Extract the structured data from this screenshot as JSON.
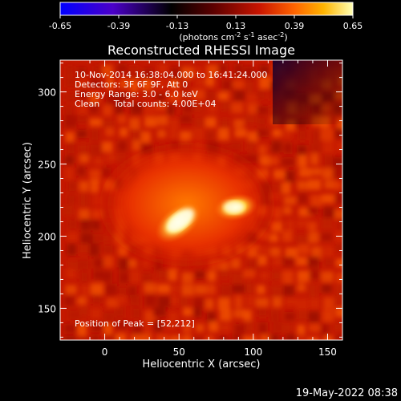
{
  "colorbar": {
    "ticks": [
      "-0.65",
      "-0.39",
      "-0.13",
      "0.13",
      "0.39",
      "0.65"
    ],
    "min": -0.65,
    "max": 0.65,
    "colors": [
      "#0000ff",
      "#4b00c8",
      "#000000",
      "#5a0000",
      "#c81400",
      "#ff6400",
      "#ffb400",
      "#ffffb4"
    ],
    "units_main": "(photons cm",
    "units_exp1": "-2",
    "units_mid": " s",
    "units_exp2": "-1",
    "units_end": " asec",
    "units_exp3": "-2",
    "units_close": ")"
  },
  "chart_data": {
    "type": "heatmap",
    "title": "Reconstructed RHESSI Image",
    "xlabel": "Heliocentric X (arcsec)",
    "ylabel": "Heliocentric Y (arcsec)",
    "xlim": [
      -30,
      160
    ],
    "ylim": [
      128,
      322
    ],
    "xticks": [
      0,
      50,
      100,
      150
    ],
    "yticks": [
      150,
      200,
      250,
      300
    ],
    "xtick_labels": [
      "0",
      "50",
      "100",
      "150"
    ],
    "ytick_labels": [
      "150",
      "200",
      "250",
      "300"
    ],
    "annotations": [
      "10-Nov-2014 16:38:04.000 to 16:41:24.000",
      "Detectors: 3F 6F 9F, Att 0",
      "Energy Range: 3.0 - 6.0 keV",
      "Clean     Total counts: 4.00E+04"
    ],
    "peak_label": "Position of Peak = [52,212]",
    "sources": [
      {
        "x": 52,
        "y": 212,
        "intensity": 0.65
      },
      {
        "x": 88,
        "y": 220,
        "intensity": 0.52
      }
    ]
  },
  "timestamp": "19-May-2022 08:38"
}
